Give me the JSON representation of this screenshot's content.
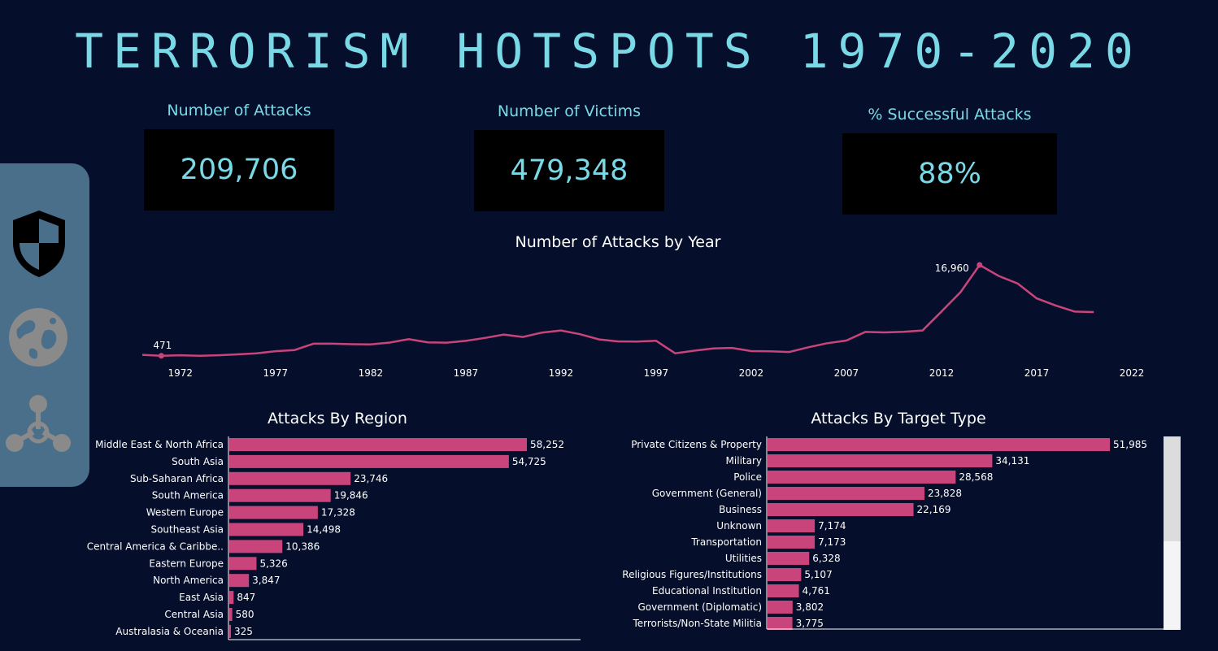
{
  "title": "TERRORISM HOTSPOTS 1970-2020",
  "kpis": [
    {
      "label": "Number of Attacks",
      "value": "209,706"
    },
    {
      "label": "Number of Victims",
      "value": "479,348"
    },
    {
      "label": "% Successful Attacks",
      "value": "88%"
    }
  ],
  "sidebar": {
    "icons": [
      "shield-icon",
      "globe-icon",
      "hazard-network-icon"
    ]
  },
  "colors": {
    "background": "#050f2c",
    "accent": "#7ad9e6",
    "bar": "#c9447a",
    "sidebar": "#4a6f8b"
  },
  "chart_data": [
    {
      "type": "line",
      "title": "Number of Attacks by Year",
      "x": [
        1970,
        1971,
        1972,
        1973,
        1974,
        1975,
        1976,
        1977,
        1978,
        1979,
        1980,
        1981,
        1982,
        1983,
        1984,
        1985,
        1986,
        1987,
        1988,
        1989,
        1990,
        1991,
        1992,
        1993,
        1994,
        1995,
        1996,
        1997,
        1998,
        1999,
        2000,
        2001,
        2002,
        2003,
        2004,
        2005,
        2006,
        2007,
        2008,
        2009,
        2010,
        2011,
        2012,
        2013,
        2014,
        2015,
        2016,
        2017,
        2018,
        2019,
        2020
      ],
      "y": [
        651,
        471,
        568,
        473,
        581,
        740,
        923,
        1319,
        1526,
        2662,
        2662,
        2586,
        2544,
        2870,
        3495,
        2915,
        2860,
        3183,
        3721,
        4324,
        3887,
        4683,
        5071,
        4400,
        3456,
        3081,
        3058,
        3200,
        934,
        1395,
        1814,
        1906,
        1333,
        1278,
        1166,
        2017,
        2758,
        3242,
        4805,
        4721,
        4826,
        5076,
        8522,
        12036,
        16960,
        14965,
        13587,
        10900,
        9607,
        8500,
        8400
      ],
      "labels": [
        {
          "x": 1971,
          "text": "471"
        },
        {
          "x": 2014,
          "text": "16,960"
        }
      ],
      "xticks": [
        "1972",
        "1977",
        "1982",
        "1987",
        "1992",
        "1997",
        "2002",
        "2007",
        "2012",
        "2017",
        "2022"
      ],
      "xlim": [
        1970,
        2022
      ],
      "ylim": [
        0,
        17500
      ]
    },
    {
      "type": "bar",
      "title": "Attacks By Region",
      "categories": [
        "Middle East & North Africa",
        "South Asia",
        "Sub-Saharan Africa",
        "South America",
        "Western Europe",
        "Southeast Asia",
        "Central America & Caribbe..",
        "Eastern Europe",
        "North America",
        "East Asia",
        "Central Asia",
        "Australasia & Oceania"
      ],
      "values": [
        58252,
        54725,
        23746,
        19846,
        17328,
        14498,
        10386,
        5326,
        3847,
        847,
        580,
        325
      ],
      "value_labels": [
        "58,252",
        "54,725",
        "23,746",
        "19,846",
        "17,328",
        "14,498",
        "10,386",
        "5,326",
        "3,847",
        "847",
        "580",
        "325"
      ],
      "xlim": [
        0,
        63000
      ]
    },
    {
      "type": "bar",
      "title": "Attacks By Target Type",
      "categories": [
        "Private Citizens & Property",
        "Military",
        "Police",
        "Government (General)",
        "Business",
        "Unknown",
        "Transportation",
        "Utilities",
        "Religious Figures/Institutions",
        "Educational Institution",
        "Government (Diplomatic)",
        "Terrorists/Non-State Militia"
      ],
      "values": [
        51985,
        34131,
        28568,
        23828,
        22169,
        7174,
        7173,
        6328,
        5107,
        4761,
        3802,
        3775
      ],
      "value_labels": [
        "51,985",
        "34,131",
        "28,568",
        "23,828",
        "22,169",
        "7,174",
        "7,173",
        "6,328",
        "5,107",
        "4,761",
        "3,802",
        "3,775"
      ],
      "xlim": [
        0,
        60000
      ]
    }
  ]
}
